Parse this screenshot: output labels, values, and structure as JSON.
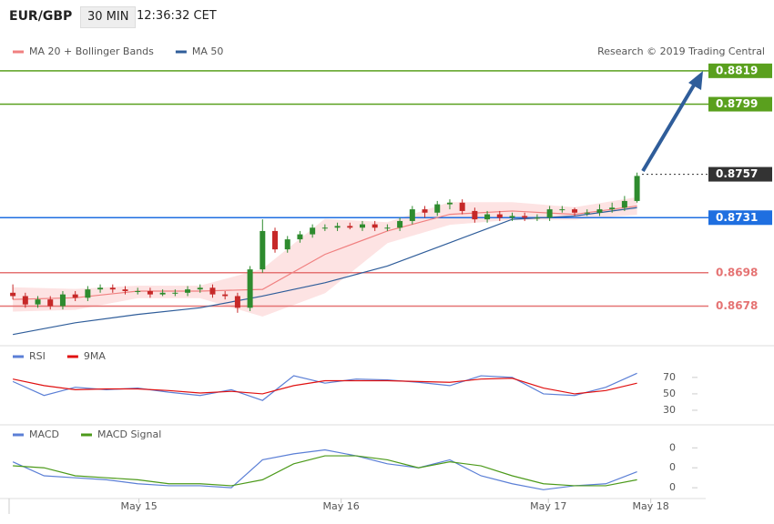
{
  "header": {
    "symbol": "EUR/GBP",
    "interval": "30 MIN",
    "time": "12:36:32 CET",
    "copyright": "Research © 2019 Trading Central"
  },
  "chart_data": [
    {
      "type": "candlestick",
      "x": [
        0,
        1,
        2,
        3,
        4,
        5,
        6,
        7,
        8,
        9,
        10,
        11,
        12,
        13,
        14,
        15,
        16,
        17,
        18,
        19,
        20,
        21,
        22,
        23,
        24,
        25,
        26,
        27,
        28,
        29,
        30,
        31,
        32,
        33,
        34,
        35,
        36,
        37,
        38,
        39,
        40,
        41,
        42,
        43,
        44,
        45,
        46,
        47,
        48,
        49,
        50
      ],
      "candles": {
        "open": [
          0.8686,
          0.8684,
          0.8679,
          0.8682,
          0.8678,
          0.8685,
          0.8683,
          0.8688,
          0.8689,
          0.8688,
          0.8687,
          0.8687,
          0.8685,
          0.8686,
          0.8686,
          0.8688,
          0.8689,
          0.8685,
          0.8684,
          0.8677,
          0.87,
          0.8723,
          0.8712,
          0.8718,
          0.8721,
          0.8725,
          0.8725,
          0.8726,
          0.8725,
          0.8727,
          0.8725,
          0.8725,
          0.8729,
          0.8736,
          0.8734,
          0.8739,
          0.874,
          0.8735,
          0.873,
          0.8733,
          0.8731,
          0.8732,
          0.8731,
          0.8731,
          0.8736,
          0.8736,
          0.8734,
          0.8734,
          0.8736,
          0.8737,
          0.8741
        ],
        "high": [
          0.8691,
          0.8686,
          0.8684,
          0.8684,
          0.8687,
          0.8687,
          0.869,
          0.8691,
          0.8691,
          0.869,
          0.8689,
          0.8689,
          0.8688,
          0.8688,
          0.869,
          0.8691,
          0.8691,
          0.8687,
          0.8686,
          0.8702,
          0.873,
          0.8725,
          0.872,
          0.8723,
          0.8727,
          0.8727,
          0.8728,
          0.8728,
          0.8729,
          0.8729,
          0.8727,
          0.8731,
          0.8738,
          0.8738,
          0.8741,
          0.8742,
          0.8742,
          0.8737,
          0.8735,
          0.8735,
          0.8734,
          0.8734,
          0.8733,
          0.8738,
          0.8738,
          0.8737,
          0.8736,
          0.8739,
          0.874,
          0.8744,
          0.8758
        ],
        "low": [
          0.8682,
          0.8677,
          0.8677,
          0.8676,
          0.8676,
          0.8681,
          0.8681,
          0.8686,
          0.8686,
          0.8685,
          0.8685,
          0.8683,
          0.8684,
          0.8684,
          0.8684,
          0.8686,
          0.8683,
          0.8682,
          0.8674,
          0.8675,
          0.8698,
          0.871,
          0.871,
          0.8716,
          0.8719,
          0.8723,
          0.8723,
          0.8724,
          0.8723,
          0.8723,
          0.8723,
          0.8723,
          0.8727,
          0.8731,
          0.8732,
          0.8736,
          0.8733,
          0.8728,
          0.8728,
          0.8729,
          0.8729,
          0.8729,
          0.8729,
          0.8729,
          0.8734,
          0.8732,
          0.8732,
          0.8732,
          0.8734,
          0.8735,
          0.874
        ],
        "close": [
          0.8684,
          0.8679,
          0.8682,
          0.8678,
          0.8685,
          0.8683,
          0.8688,
          0.8689,
          0.8688,
          0.8687,
          0.8687,
          0.8685,
          0.8686,
          0.8686,
          0.8688,
          0.8689,
          0.8685,
          0.8684,
          0.8677,
          0.87,
          0.8723,
          0.8712,
          0.8718,
          0.8721,
          0.8725,
          0.8725,
          0.8726,
          0.8725,
          0.8727,
          0.8725,
          0.8725,
          0.8729,
          0.8736,
          0.8734,
          0.8739,
          0.874,
          0.8735,
          0.873,
          0.8733,
          0.8731,
          0.8732,
          0.8731,
          0.8731,
          0.8736,
          0.8736,
          0.8734,
          0.8734,
          0.8736,
          0.8737,
          0.8741,
          0.8756
        ]
      },
      "up_color": "#2e8b2e",
      "down_color": "#c62828",
      "series": [
        {
          "name": "MA 20 + Bollinger Bands",
          "color": "#f08080",
          "band_color": "#fde3e3",
          "x": [
            0,
            5,
            10,
            15,
            20,
            25,
            30,
            35,
            40,
            45,
            50
          ],
          "values": [
            0.8682,
            0.8683,
            0.8687,
            0.8687,
            0.8688,
            0.8709,
            0.8723,
            0.8733,
            0.8735,
            0.8733,
            0.8738
          ],
          "upper": [
            0.8689,
            0.8688,
            0.869,
            0.869,
            0.87,
            0.873,
            0.8728,
            0.874,
            0.874,
            0.8737,
            0.8743
          ],
          "lower": [
            0.8675,
            0.8676,
            0.8683,
            0.8683,
            0.8672,
            0.8686,
            0.8716,
            0.8727,
            0.873,
            0.873,
            0.8733
          ]
        },
        {
          "name": "MA 50",
          "color": "#2f5d9a",
          "x": [
            0,
            5,
            10,
            15,
            20,
            25,
            30,
            35,
            40,
            45,
            50
          ],
          "values": [
            0.8661,
            0.8668,
            0.8673,
            0.8677,
            0.8684,
            0.8692,
            0.8702,
            0.8716,
            0.873,
            0.8732,
            0.8737
          ]
        }
      ],
      "levels": [
        {
          "value": 0.8819,
          "color": "#5aa01e",
          "tag": true,
          "dotted": false
        },
        {
          "value": 0.8799,
          "color": "#5aa01e",
          "tag": true,
          "dotted": false
        },
        {
          "value": 0.8757,
          "color": "#333333",
          "tag": true,
          "dotted": true
        },
        {
          "value": 0.8731,
          "color": "#1f6fe0",
          "tag": true,
          "dotted": false
        },
        {
          "value": 0.8698,
          "color": "#e57373",
          "tag": false,
          "dotted": false
        },
        {
          "value": 0.8678,
          "color": "#e57373",
          "tag": false,
          "dotted": false
        }
      ],
      "xlim": [
        -0.3,
        55.5
      ],
      "ylim": [
        0.8657,
        0.8826
      ]
    },
    {
      "type": "line",
      "x": [
        0,
        2.5,
        5,
        7.5,
        10,
        12.5,
        15,
        17.5,
        20,
        22.5,
        25,
        27.5,
        30,
        32.5,
        35,
        37.5,
        40,
        42.5,
        45,
        47.5,
        50
      ],
      "series": [
        {
          "name": "RSI",
          "color": "#5b7fd6",
          "values": [
            65,
            48,
            58,
            55,
            57,
            52,
            48,
            55,
            42,
            72,
            63,
            68,
            67,
            64,
            60,
            72,
            70,
            50,
            48,
            58,
            75
          ]
        },
        {
          "name": "9MA",
          "color": "#e01010",
          "values": [
            68,
            60,
            55,
            56,
            56,
            54,
            51,
            53,
            50,
            60,
            66,
            66,
            66,
            65,
            64,
            68,
            69,
            57,
            50,
            54,
            63
          ]
        }
      ],
      "xlim": [
        -0.3,
        55.5
      ],
      "ylim": [
        20,
        92
      ],
      "yticks": [
        70,
        50,
        30
      ]
    },
    {
      "type": "line",
      "x": [
        0,
        2.5,
        5,
        7.5,
        10,
        12.5,
        15,
        17.5,
        20,
        22.5,
        25,
        27.5,
        30,
        32.5,
        35,
        37.5,
        40,
        42.5,
        45,
        47.5,
        50
      ],
      "series": [
        {
          "name": "MACD",
          "color": "#5b7fd6",
          "values": [
            0.0003,
            -0.0004,
            -0.0005,
            -0.0006,
            -0.0008,
            -0.0009,
            -0.0009,
            -0.001,
            0.0004,
            0.0007,
            0.0009,
            0.0006,
            0.0002,
            0.0,
            0.0004,
            -0.0004,
            -0.0008,
            -0.0011,
            -0.0009,
            -0.0008,
            -0.0002
          ]
        },
        {
          "name": "MACD Signal",
          "color": "#4c9a1a",
          "values": [
            0.0001,
            0.0,
            -0.0004,
            -0.0005,
            -0.0006,
            -0.0008,
            -0.0008,
            -0.0009,
            -0.0006,
            0.0002,
            0.0006,
            0.0006,
            0.0004,
            0.0,
            0.0003,
            0.0001,
            -0.0004,
            -0.0008,
            -0.0009,
            -0.0009,
            -0.0006
          ]
        }
      ],
      "xlim": [
        -0.3,
        55.5
      ],
      "ylim": [
        -0.00145,
        0.00147
      ],
      "yticks": [
        {
          "value": 0.001,
          "label": "0"
        },
        {
          "value": 0,
          "label": "0"
        },
        {
          "value": -0.001,
          "label": "0"
        }
      ],
      "xticks": [
        {
          "value": 10.1,
          "label": "May 15"
        },
        {
          "value": 26.3,
          "label": "May 16"
        },
        {
          "value": 42.9,
          "label": "May 17"
        },
        {
          "value": 51.1,
          "label": "May 18"
        }
      ]
    }
  ]
}
